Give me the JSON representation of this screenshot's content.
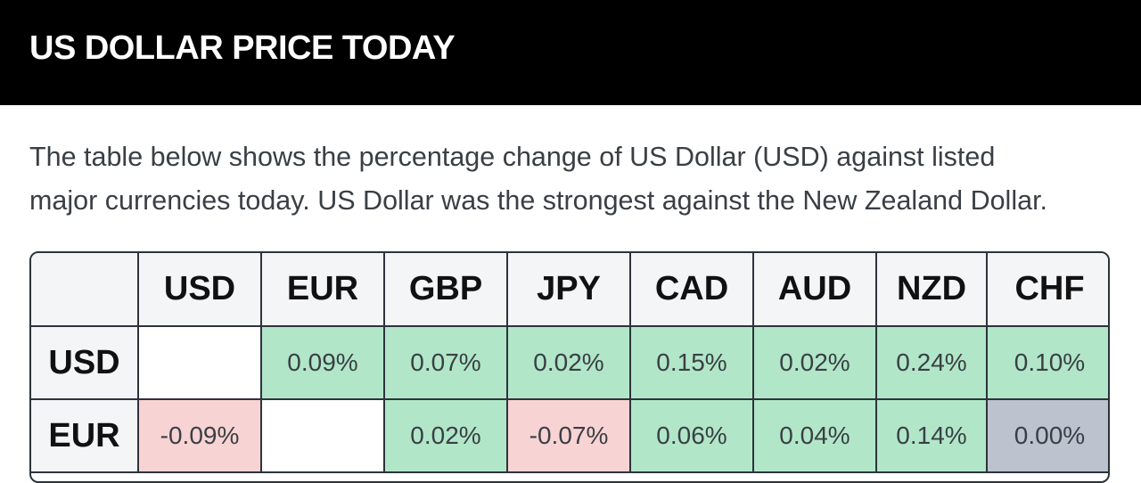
{
  "header": {
    "title": "US DOLLAR PRICE TODAY"
  },
  "description": {
    "line1": "The table below shows the percentage change of US Dollar (USD) against listed",
    "line2": "major currencies today. US Dollar was the strongest against the New Zealand Dollar."
  },
  "table": {
    "corner": "",
    "columns": [
      "USD",
      "EUR",
      "GBP",
      "JPY",
      "CAD",
      "AUD",
      "NZD",
      "CHF"
    ],
    "rows": [
      {
        "label": "USD",
        "cells": [
          {
            "value": "",
            "trend": "empty"
          },
          {
            "value": "0.09%",
            "trend": "positive"
          },
          {
            "value": "0.07%",
            "trend": "positive"
          },
          {
            "value": "0.02%",
            "trend": "positive"
          },
          {
            "value": "0.15%",
            "trend": "positive"
          },
          {
            "value": "0.02%",
            "trend": "positive"
          },
          {
            "value": "0.24%",
            "trend": "positive"
          },
          {
            "value": "0.10%",
            "trend": "positive"
          }
        ]
      },
      {
        "label": "EUR",
        "cells": [
          {
            "value": "-0.09%",
            "trend": "negative"
          },
          {
            "value": "",
            "trend": "empty"
          },
          {
            "value": "0.02%",
            "trend": "positive"
          },
          {
            "value": "-0.07%",
            "trend": "negative"
          },
          {
            "value": "0.06%",
            "trend": "positive"
          },
          {
            "value": "0.04%",
            "trend": "positive"
          },
          {
            "value": "0.14%",
            "trend": "positive"
          },
          {
            "value": "0.00%",
            "trend": "neutral"
          }
        ]
      }
    ]
  },
  "colors": {
    "header_bg": "#000000",
    "positive": "#b1e7c8",
    "negative": "#f8d3d3",
    "neutral": "#bcc3cf",
    "header_row_bg": "#f4f5f7",
    "border": "#2d333b"
  }
}
